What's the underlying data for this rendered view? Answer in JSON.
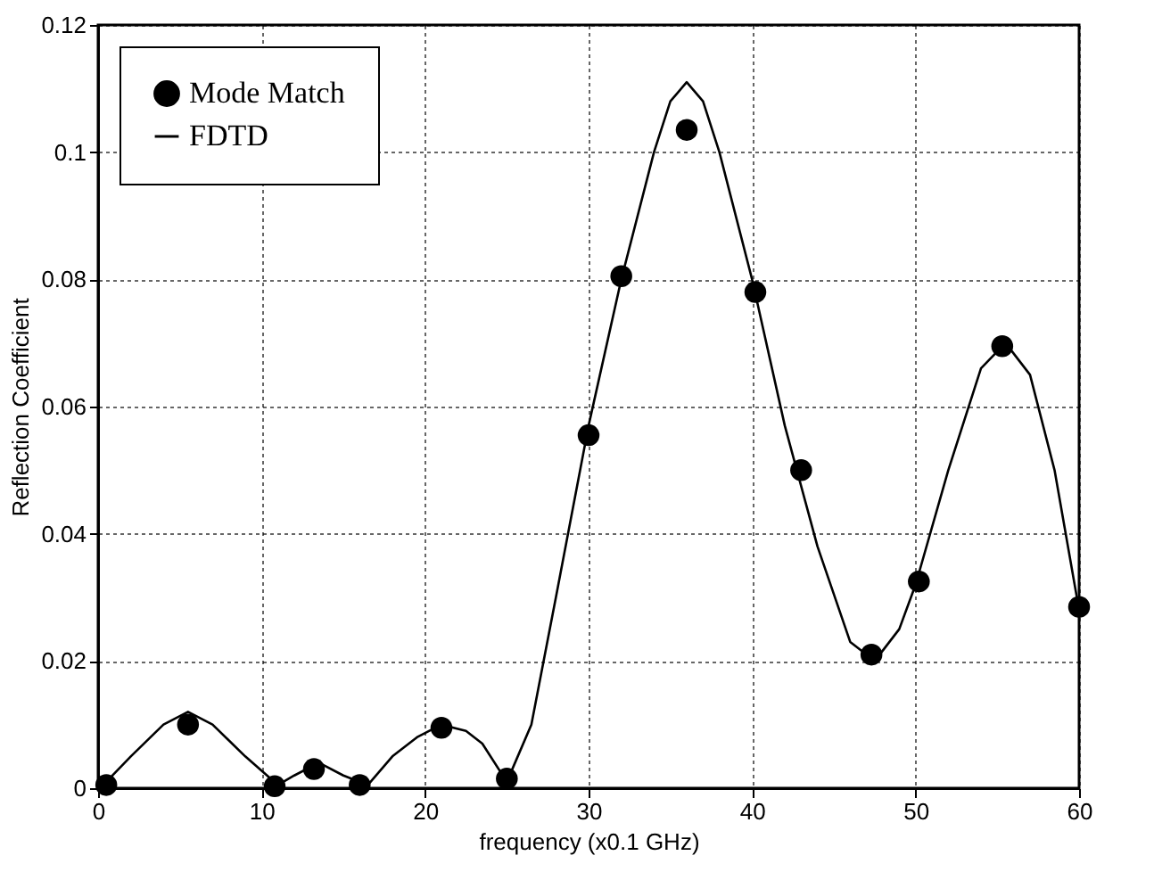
{
  "chart_data": {
    "type": "scatter",
    "xlabel": "frequency (x0.1 GHz)",
    "ylabel": "Reflection Coefficient",
    "xlim": [
      0,
      60
    ],
    "xticks": [
      0,
      10,
      20,
      30,
      40,
      50,
      60
    ],
    "ylim": [
      0,
      0.12
    ],
    "yticks": [
      0,
      0.02,
      0.04,
      0.06,
      0.08,
      0.1,
      0.12
    ],
    "grid": true,
    "legend": "top left",
    "series": [
      {
        "name": "Mode Match",
        "marker": "circle",
        "color": "#000000",
        "x": [
          0.5,
          5.5,
          10.8,
          13.2,
          16,
          21,
          25,
          30,
          32,
          36,
          40.2,
          43,
          47.3,
          50.2,
          55.3,
          60
        ],
        "values": [
          0.0005,
          0.01,
          0.0003,
          0.003,
          0.0005,
          0.0095,
          0.0015,
          0.0555,
          0.0805,
          0.1035,
          0.078,
          0.05,
          0.021,
          0.0325,
          0.0695,
          0.0285
        ]
      },
      {
        "name": "FDTD",
        "type": "line",
        "marker": "none",
        "line_style": "solid",
        "color": "#000000",
        "x": [
          0.5,
          2,
          4,
          5.5,
          7,
          9,
          11,
          12,
          13.5,
          15,
          16.5,
          18,
          19.5,
          21,
          22.5,
          23.5,
          25,
          26.5,
          28,
          30,
          32,
          34,
          35,
          36,
          37,
          38,
          40,
          42,
          44,
          46,
          47.5,
          49,
          50,
          52,
          54,
          55.5,
          57,
          58.5,
          60
        ],
        "values": [
          0.001,
          0.005,
          0.01,
          0.012,
          0.01,
          0.005,
          0.0005,
          0.002,
          0.004,
          0.002,
          0.0005,
          0.005,
          0.008,
          0.01,
          0.009,
          0.007,
          0.001,
          0.01,
          0.03,
          0.057,
          0.08,
          0.1,
          0.108,
          0.111,
          0.108,
          0.1,
          0.08,
          0.057,
          0.038,
          0.023,
          0.02,
          0.025,
          0.032,
          0.05,
          0.066,
          0.07,
          0.065,
          0.05,
          0.028
        ]
      }
    ]
  }
}
